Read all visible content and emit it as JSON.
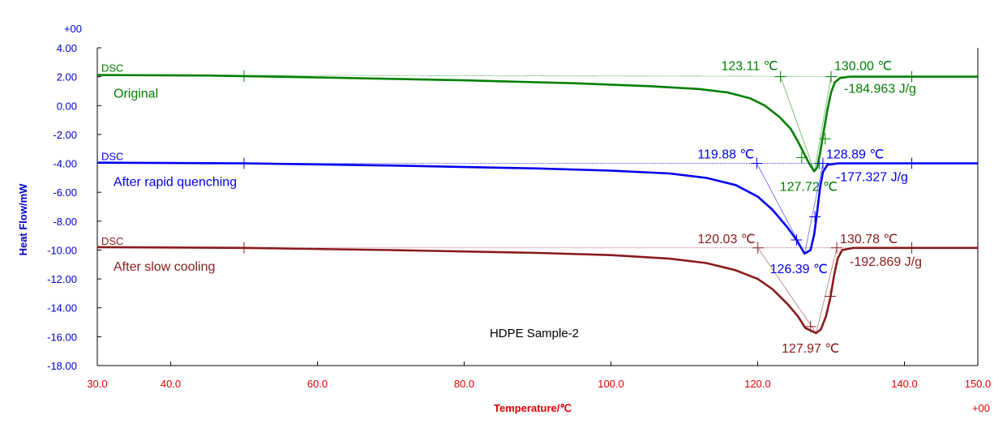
{
  "chart_data": {
    "type": "line",
    "title": "HDPE  Sample-2",
    "xlabel": "Temperature/℃",
    "ylabel": "Heat Flow/mW",
    "x_exponent_label": "+00",
    "y_exponent_label": "+00",
    "xlim": [
      30,
      150
    ],
    "ylim": [
      -18,
      4
    ],
    "x_ticks": [
      30,
      40,
      60,
      80,
      100,
      120,
      140,
      150
    ],
    "x_tick_labels": [
      "30.0",
      "40.0",
      "60.0",
      "80.0",
      "100.0",
      "120.0",
      "140.0",
      "150.0"
    ],
    "y_ticks": [
      4,
      2,
      0,
      -2,
      -4,
      -6,
      -8,
      -10,
      -12,
      -14,
      -16,
      -18
    ],
    "y_tick_labels": [
      "4.00",
      "2.00",
      "0.00",
      "-2.00",
      "-4.00",
      "-6.00",
      "-8.00",
      "-10.00",
      "-12.00",
      "-14.00",
      "-16.00",
      "-18.00"
    ],
    "grid": false,
    "colors": {
      "axis": "#000000",
      "x_axis_text": "#e00000",
      "y_axis_text": "#0000cc"
    },
    "series": [
      {
        "name": "Original",
        "tag": "DSC",
        "color": "#008000",
        "baseline_x": [
          30,
          150
        ],
        "baseline_y": [
          2.12,
          2.0
        ],
        "points": [
          [
            30,
            2.12
          ],
          [
            45,
            2.08
          ],
          [
            60,
            1.95
          ],
          [
            80,
            1.75
          ],
          [
            95,
            1.55
          ],
          [
            105,
            1.35
          ],
          [
            112,
            1.15
          ],
          [
            116,
            0.9
          ],
          [
            119,
            0.5
          ],
          [
            121,
            0.0
          ],
          [
            123,
            -0.8
          ],
          [
            124.5,
            -1.6
          ],
          [
            125.5,
            -2.5
          ],
          [
            126.3,
            -3.3
          ],
          [
            127,
            -4.0
          ],
          [
            127.7,
            -4.55
          ],
          [
            128.1,
            -4.3
          ],
          [
            128.5,
            -3.3
          ],
          [
            129,
            -1.8
          ],
          [
            129.5,
            -0.3
          ],
          [
            130,
            0.9
          ],
          [
            130.5,
            1.6
          ],
          [
            131.2,
            1.9
          ],
          [
            132.5,
            2.0
          ],
          [
            150,
            2.0
          ]
        ],
        "tangent": {
          "onset_x": 123.11,
          "end_x": 130.0,
          "peak_x": 127.72,
          "peak_y": -4.55
        },
        "markers": [
          [
            50,
            2.05
          ],
          [
            123.11,
            2.0
          ],
          [
            130.0,
            2.0
          ],
          [
            141,
            2.0
          ],
          [
            126.0,
            -3.6
          ],
          [
            129.2,
            -2.3
          ],
          [
            128.4,
            -4.0
          ]
        ],
        "annotations": {
          "onset": "123.11 ℃",
          "endset": "130.00 ℃",
          "peak": "127.72 ℃",
          "enthalpy": "-184.963 J/g"
        }
      },
      {
        "name": "After rapid quenching",
        "tag": "DSC",
        "color": "#0000ee",
        "baseline_x": [
          30,
          150
        ],
        "baseline_y": [
          -4.0,
          -4.0
        ],
        "points": [
          [
            30,
            -3.95
          ],
          [
            50,
            -4.0
          ],
          [
            70,
            -4.15
          ],
          [
            90,
            -4.35
          ],
          [
            100,
            -4.5
          ],
          [
            108,
            -4.7
          ],
          [
            113,
            -5.0
          ],
          [
            117,
            -5.5
          ],
          [
            120,
            -6.3
          ],
          [
            122,
            -7.2
          ],
          [
            124,
            -8.4
          ],
          [
            125.3,
            -9.3
          ],
          [
            126.39,
            -10.25
          ],
          [
            127.2,
            -10.0
          ],
          [
            127.7,
            -8.9
          ],
          [
            128.1,
            -7.4
          ],
          [
            128.5,
            -5.7
          ],
          [
            128.9,
            -4.6
          ],
          [
            129.5,
            -4.1
          ],
          [
            131,
            -4.0
          ],
          [
            150,
            -4.0
          ]
        ],
        "tangent": {
          "onset_x": 119.88,
          "end_x": 128.89,
          "peak_x": 126.39,
          "peak_y": -10.25
        },
        "markers": [
          [
            50,
            -4.0
          ],
          [
            119.88,
            -4.0
          ],
          [
            128.89,
            -4.0
          ],
          [
            141,
            -4.0
          ],
          [
            125.3,
            -9.3
          ],
          [
            127.8,
            -7.7
          ]
        ],
        "annotations": {
          "onset": "119.88 ℃",
          "endset": "128.89 ℃",
          "peak": "126.39 ℃",
          "enthalpy": "-177.327 J/g"
        }
      },
      {
        "name": "After slow cooling",
        "tag": "DSC",
        "color": "#8b1a1a",
        "baseline_x": [
          30,
          150
        ],
        "baseline_y": [
          -9.85,
          -9.85
        ],
        "points": [
          [
            30,
            -9.8
          ],
          [
            50,
            -9.85
          ],
          [
            70,
            -10.0
          ],
          [
            90,
            -10.2
          ],
          [
            100,
            -10.35
          ],
          [
            108,
            -10.6
          ],
          [
            113,
            -10.9
          ],
          [
            117,
            -11.4
          ],
          [
            120,
            -12.0
          ],
          [
            122,
            -12.7
          ],
          [
            124,
            -13.7
          ],
          [
            125.5,
            -14.6
          ],
          [
            126.5,
            -15.4
          ],
          [
            127.97,
            -15.75
          ],
          [
            128.6,
            -15.5
          ],
          [
            129.3,
            -14.6
          ],
          [
            129.9,
            -13.3
          ],
          [
            130.4,
            -11.8
          ],
          [
            130.9,
            -10.6
          ],
          [
            131.5,
            -10.0
          ],
          [
            133,
            -9.85
          ],
          [
            150,
            -9.85
          ]
        ],
        "tangent": {
          "onset_x": 120.03,
          "end_x": 130.78,
          "peak_x": 127.97,
          "peak_y": -15.75
        },
        "markers": [
          [
            50,
            -9.85
          ],
          [
            120.03,
            -9.85
          ],
          [
            130.78,
            -9.85
          ],
          [
            141,
            -9.85
          ],
          [
            127.2,
            -15.3
          ],
          [
            129.9,
            -13.2
          ]
        ],
        "annotations": {
          "onset": "120.03 ℃",
          "endset": "130.78 ℃",
          "peak": "127.97 ℃",
          "enthalpy": "-192.869 J/g"
        }
      }
    ]
  }
}
